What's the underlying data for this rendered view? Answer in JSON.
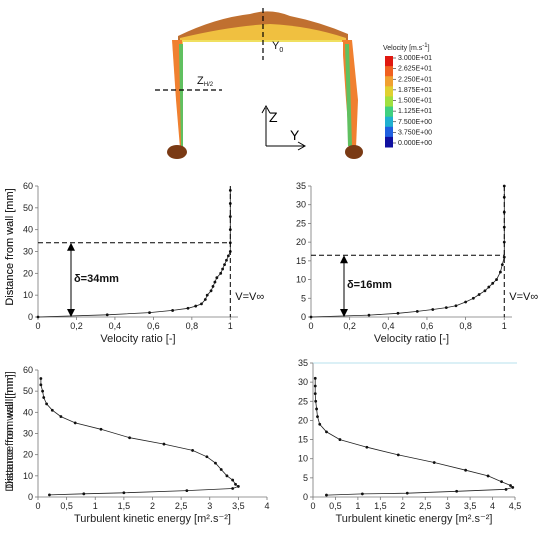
{
  "figure": {
    "plane_label": "Y",
    "z_label": "Z",
    "y_label": "Y",
    "zmid_label": "Z",
    "zmid_sub": "H/2",
    "legend_title": "Velocity [m.s",
    "legend_title_sup": "-1",
    "legend_title_end": "]",
    "legend_values": [
      "3.000E+01",
      "2.625E+01",
      "2.250E+01",
      "1.875E+01",
      "1.500E+01",
      "1.125E+01",
      "7.500E+00",
      "3.750E+00",
      "0.000E+00"
    ],
    "legend_colors": [
      "#e01810",
      "#f06020",
      "#f0a030",
      "#e0d030",
      "#a0e040",
      "#40d080",
      "#20b0d0",
      "#2060e0",
      "#1010a0"
    ]
  },
  "chart_data": [
    {
      "type": "line",
      "xlabel": "Velocity ratio [-]",
      "ylabel": "Distance from wall [mm]",
      "xlim": [
        0,
        1.04
      ],
      "ylim": [
        0,
        60
      ],
      "xticks": [
        "0",
        "0,2",
        "0,4",
        "0,6",
        "0,8",
        "1"
      ],
      "yticks": [
        "0",
        "10",
        "20",
        "30",
        "40",
        "50",
        "60"
      ],
      "delta_label": "δ=34mm",
      "delta": 34,
      "vinf_label": "V=V∞",
      "series": [
        {
          "x": [
            0.0,
            0.36,
            0.58,
            0.7,
            0.78,
            0.82,
            0.85,
            0.87,
            0.88,
            0.9,
            0.91,
            0.92,
            0.93,
            0.95,
            0.96,
            0.97,
            0.98,
            0.99,
            1.0,
            1.0,
            1.0,
            1.0,
            1.0,
            1.0
          ],
          "y": [
            0,
            1,
            2,
            3,
            4,
            5,
            6,
            8,
            10,
            12,
            14,
            16,
            18,
            20,
            22,
            24,
            26,
            28,
            30,
            34,
            40,
            46,
            52,
            58
          ]
        }
      ]
    },
    {
      "type": "line",
      "xlabel": "Velocity ratio [-]",
      "ylabel": "Distance from wall [mm]",
      "xlim": [
        0,
        1.04
      ],
      "ylim": [
        0,
        35
      ],
      "xticks": [
        "0",
        "0,2",
        "0,4",
        "0,6",
        "0,8",
        "1"
      ],
      "yticks": [
        "0",
        "5",
        "10",
        "15",
        "20",
        "25",
        "30",
        "35"
      ],
      "delta_label": "δ=16mm",
      "delta": 16.5,
      "vinf_label": "V=V∞",
      "series": [
        {
          "x": [
            0.0,
            0.3,
            0.45,
            0.55,
            0.63,
            0.7,
            0.75,
            0.8,
            0.84,
            0.87,
            0.9,
            0.92,
            0.94,
            0.96,
            0.98,
            0.99,
            1.0,
            1.0,
            1.0,
            1.0,
            1.0,
            1.0
          ],
          "y": [
            0,
            0.5,
            1,
            1.5,
            2,
            2.5,
            3,
            4,
            5,
            6,
            7,
            8,
            9,
            10,
            12,
            14,
            16,
            20,
            24,
            28,
            32,
            35
          ]
        }
      ]
    },
    {
      "type": "line",
      "xlabel": "Turbulent kinetic energy [m².s⁻²]",
      "ylabel": "Distance from wall [mm]",
      "xlim": [
        0,
        4
      ],
      "ylim": [
        0,
        60
      ],
      "xticks": [
        "0",
        "0,5",
        "1",
        "1,5",
        "2",
        "2,5",
        "3",
        "3,5",
        "4"
      ],
      "yticks": [
        "0",
        "10",
        "20",
        "30",
        "40",
        "50",
        "60"
      ],
      "series": [
        {
          "x": [
            0.05,
            0.05,
            0.08,
            0.1,
            0.15,
            0.25,
            0.4,
            0.65,
            1.1,
            1.6,
            2.2,
            2.7,
            2.95,
            3.1,
            3.2,
            3.3,
            3.4,
            3.45,
            3.5,
            3.4,
            2.6,
            1.5,
            0.8,
            0.2
          ],
          "y": [
            56,
            53,
            50,
            47,
            44,
            41,
            38,
            35,
            32,
            28,
            25,
            22,
            19,
            16,
            13,
            10,
            8,
            6,
            5,
            4,
            3,
            2,
            1.5,
            1
          ]
        }
      ]
    },
    {
      "type": "line",
      "xlabel": "Turbulent kinetic energy [m².s⁻²]",
      "ylabel": "Distance from wall [mm]",
      "xlim": [
        0,
        4.5
      ],
      "ylim": [
        0,
        35
      ],
      "xticks": [
        "0",
        "0,5",
        "1",
        "1,5",
        "2",
        "2,5",
        "3",
        "3,5",
        "4",
        "4,5"
      ],
      "yticks": [
        "0",
        "5",
        "10",
        "15",
        "20",
        "25",
        "30",
        "35"
      ],
      "series": [
        {
          "x": [
            0.05,
            0.05,
            0.05,
            0.06,
            0.08,
            0.1,
            0.15,
            0.3,
            0.6,
            1.2,
            1.9,
            2.7,
            3.4,
            3.9,
            4.2,
            4.4,
            4.45,
            4.3,
            3.2,
            2.1,
            1.1,
            0.3
          ],
          "y": [
            31,
            29,
            27,
            25,
            23,
            21,
            19,
            17,
            15,
            13,
            11,
            9,
            7,
            5.5,
            4,
            3,
            2.5,
            2,
            1.5,
            1,
            0.8,
            0.5
          ]
        }
      ]
    }
  ]
}
